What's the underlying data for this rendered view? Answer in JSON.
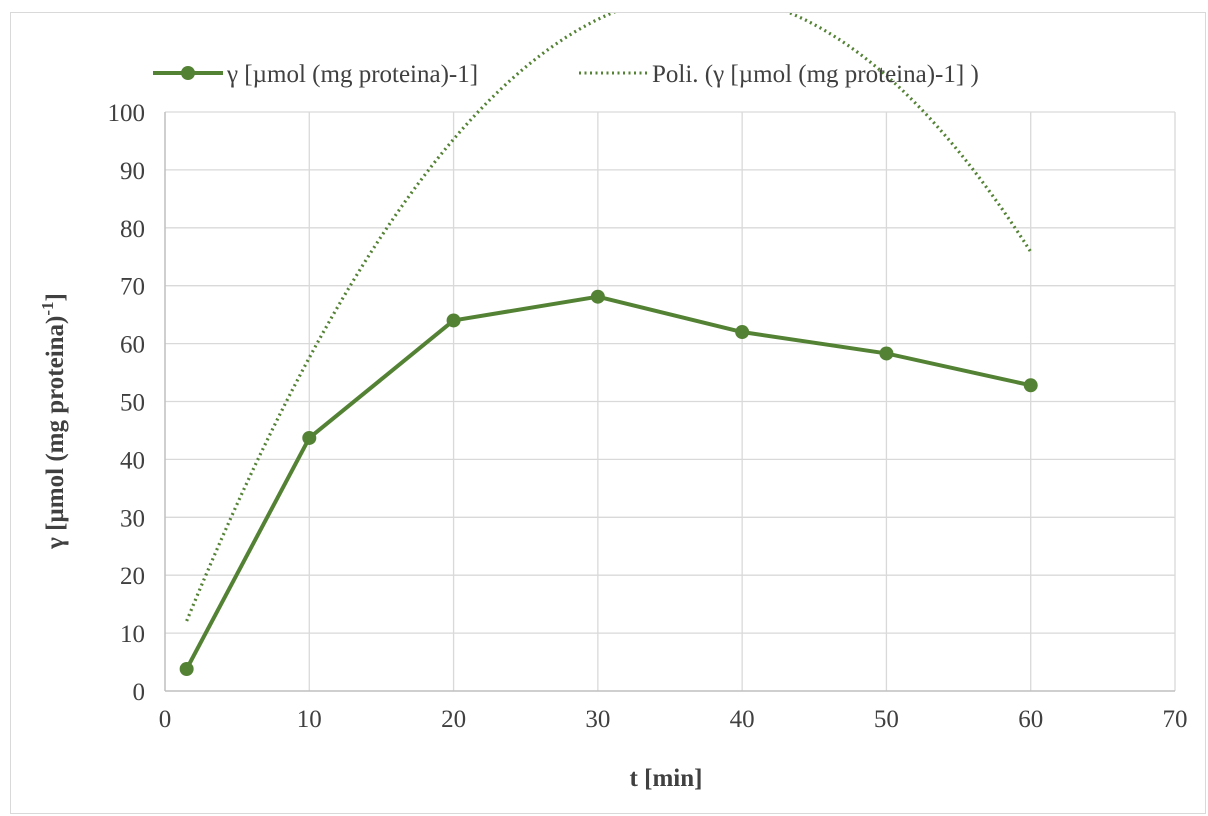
{
  "chart_data": {
    "type": "line",
    "title": "",
    "xlabel": "t [min]",
    "ylabel_main": "γ [µmol (mg proteina)",
    "ylabel_sup": "-1",
    "ylabel_close": "]",
    "xlim": [
      0,
      70
    ],
    "ylim": [
      0,
      100
    ],
    "xticks": [
      0,
      10,
      20,
      30,
      40,
      50,
      60,
      70
    ],
    "yticks": [
      0,
      10,
      20,
      30,
      40,
      50,
      60,
      70,
      80,
      90,
      100
    ],
    "grid": true,
    "legend_position": "top",
    "series": [
      {
        "name": "γ [µmol (mg proteina)-1]",
        "style": "solid-with-markers",
        "color": "#548235",
        "x": [
          1.5,
          10,
          20,
          30,
          40,
          50,
          60
        ],
        "y": [
          3.8,
          43.7,
          64.0,
          68.1,
          62.0,
          58.3,
          52.8
        ]
      },
      {
        "name": "Poli. (γ [µmol (mg proteina)-1]  )",
        "style": "dotted-trendline",
        "color": "#548235",
        "polynomial": {
          "order": 2,
          "coefficients": [
            2.78,
            6.33,
            -0.0852
          ]
        },
        "x_range": [
          1.5,
          60
        ]
      }
    ]
  }
}
